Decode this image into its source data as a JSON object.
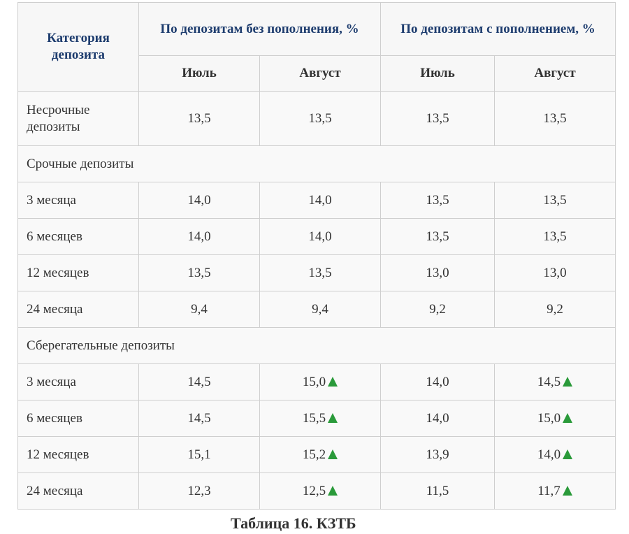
{
  "table": {
    "header": {
      "category": "Категория депозита",
      "group_no_topup": "По депозитам без пополнения, %",
      "group_topup": "По депозитам с пополнением, %",
      "months": [
        "Июль",
        "Август",
        "Июль",
        "Август"
      ]
    },
    "rows": [
      {
        "label": "Несрочные депозиты",
        "values": [
          "13,5",
          "13,5",
          "13,5",
          "13,5"
        ]
      },
      {
        "section": "Срочные депозиты"
      },
      {
        "label": "3 месяца",
        "values": [
          "14,0",
          "14,0",
          "13,5",
          "13,5"
        ]
      },
      {
        "label": "6 месяцев",
        "values": [
          "14,0",
          "14,0",
          "13,5",
          "13,5"
        ]
      },
      {
        "label": "12 месяцев",
        "values": [
          "13,5",
          "13,5",
          "13,0",
          "13,0"
        ]
      },
      {
        "label": "24 месяца",
        "values": [
          "9,4",
          "9,4",
          "9,2",
          "9,2"
        ]
      },
      {
        "section": "Сберегательные депозиты"
      },
      {
        "label": "3 месяца",
        "values": [
          "14,5",
          "15,0",
          "14,0",
          "14,5"
        ]
      },
      {
        "label": "6 месяцев",
        "values": [
          "14,5",
          "15,5",
          "14,0",
          "15,0"
        ]
      },
      {
        "label": "12 месяцев",
        "values": [
          "15,1",
          "15,2",
          "13,9",
          "14,0"
        ]
      },
      {
        "label": "24 месяца",
        "values": [
          "12,3",
          "12,5",
          "11,5",
          "11,7"
        ]
      }
    ],
    "increase_icon": "triangle-up-icon",
    "increase_color": "#2a9a3a",
    "header_color": "#1d3c6e"
  },
  "caption": "Таблица 16. КЗТБ"
}
